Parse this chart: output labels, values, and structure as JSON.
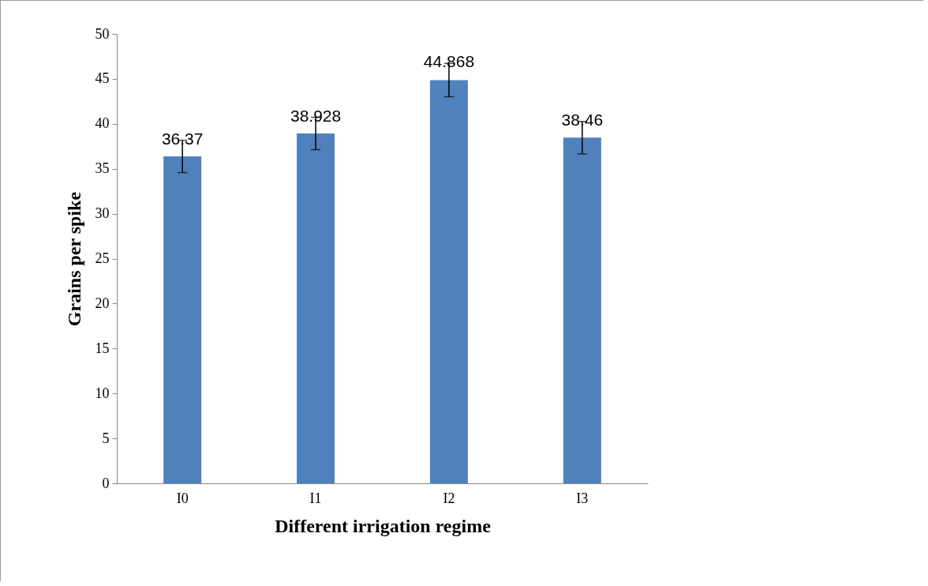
{
  "chart_data": {
    "type": "bar",
    "xlabel": "Different irrigation regime",
    "ylabel": "Grains per spike",
    "categories": [
      "I0",
      "I1",
      "I2",
      "I3"
    ],
    "values": [
      36.37,
      38.928,
      44.868,
      38.46
    ],
    "errors": [
      1.8,
      1.8,
      1.85,
      1.8
    ],
    "color": "#4f81bd",
    "data_labels": true,
    "ylim": [
      0,
      50
    ],
    "yticks": [
      0,
      5,
      10,
      15,
      20,
      25,
      30,
      35,
      40,
      45,
      50
    ],
    "grid": false
  }
}
